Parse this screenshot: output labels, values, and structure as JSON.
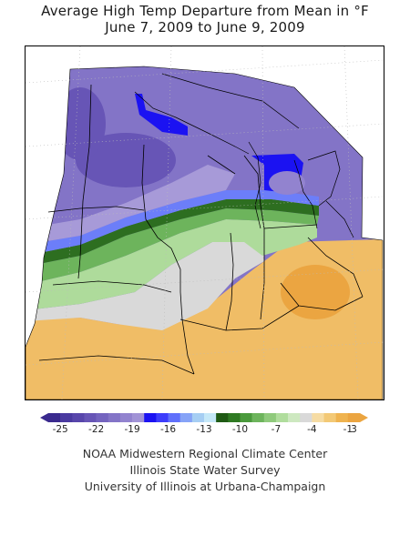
{
  "title": {
    "line1": "Average High Temp Departure from Mean in °F",
    "line2": "June 7, 2009 to June 9, 2009"
  },
  "legend": {
    "colors": [
      "#3a2a8e",
      "#4a3aa0",
      "#5846ab",
      "#6755b6",
      "#7464bf",
      "#8374c7",
      "#9283cf",
      "#a193d6",
      "#1b12f2",
      "#3c3cfb",
      "#6070fb",
      "#86a3f7",
      "#a6cef3",
      "#c5e8f8",
      "#1f5a14",
      "#2f7a23",
      "#4a9a3c",
      "#6db45c",
      "#8fca7c",
      "#b0dd9d",
      "#cde8c0",
      "#d9d9d9",
      "#f6dca4",
      "#f3c976",
      "#efb34f",
      "#eba541"
    ],
    "tick_labels": [
      "-25",
      "-22",
      "-19",
      "-16",
      "-13",
      "-10",
      "-7",
      "-4",
      "-1",
      "3"
    ]
  },
  "credits": {
    "line1": "NOAA Midwestern Regional Climate Center",
    "line2": "Illinois State Water Survey",
    "line3": "University of Illinois at Urbana-Champaign"
  }
}
